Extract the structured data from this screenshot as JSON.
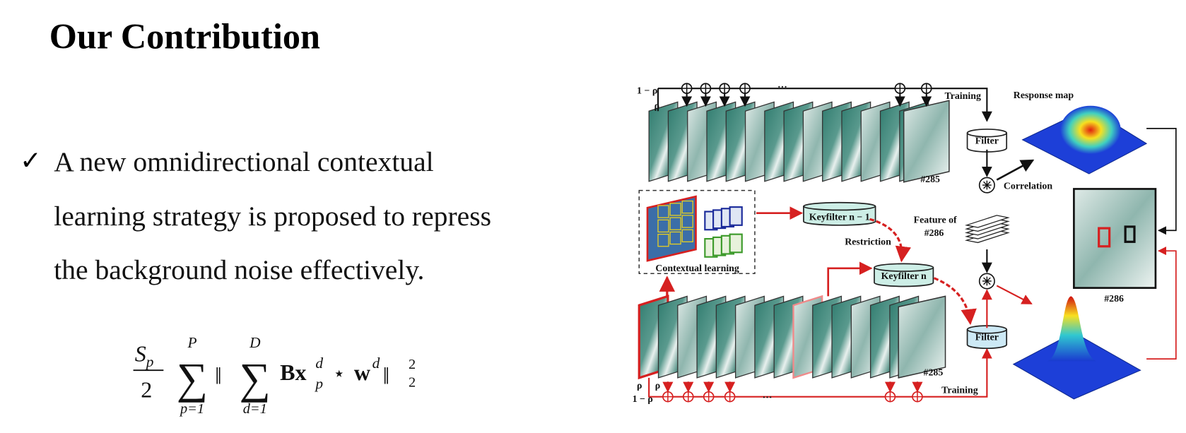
{
  "title": "Our Contribution",
  "bullet": {
    "mark": "✓",
    "lines": [
      "A new omnidirectional contextual",
      "learning strategy is proposed to repress",
      "the background noise effectively."
    ]
  },
  "formula": {
    "frac_num": "S",
    "frac_num_sub": "p",
    "frac_den": "2",
    "sum1": {
      "symbol": "∑",
      "upper": "P",
      "lower": "p=1"
    },
    "norm_open": "‖",
    "sum2": {
      "symbol": "∑",
      "upper": "D",
      "lower": "d=1"
    },
    "term1": "Bx",
    "term1_sup": "d",
    "term1_sub": "p",
    "op": "⋆",
    "term2": "w",
    "term2_sup": "d",
    "norm_close": "‖",
    "norm_sub": "2",
    "norm_sup": "2"
  },
  "diagram": {
    "top_one_minus_rho": "1 − ρ",
    "top_rho": "ρ",
    "top_dots": "···",
    "top_training": "Training",
    "response_map": "Response map",
    "top_filter": "Filter",
    "top_frame": "#285",
    "correlation": "Correlation",
    "feature_line1": "Feature of",
    "feature_line2": "#286",
    "keyfilter_prev": "Keyfilter n − 1",
    "restriction": "Restriction",
    "contextual_learning": "Contextual learning",
    "keyfilter_n": "Keyfilter n",
    "result_frame": "#286",
    "bottom_filter": "Filter",
    "bottom_frame": "#285",
    "bottom_training": "Training",
    "bottom_rho_a": "ρ",
    "bottom_rho_b": "ρ",
    "bottom_one_minus_rho": "1 − ρ",
    "bottom_dots": "···"
  }
}
